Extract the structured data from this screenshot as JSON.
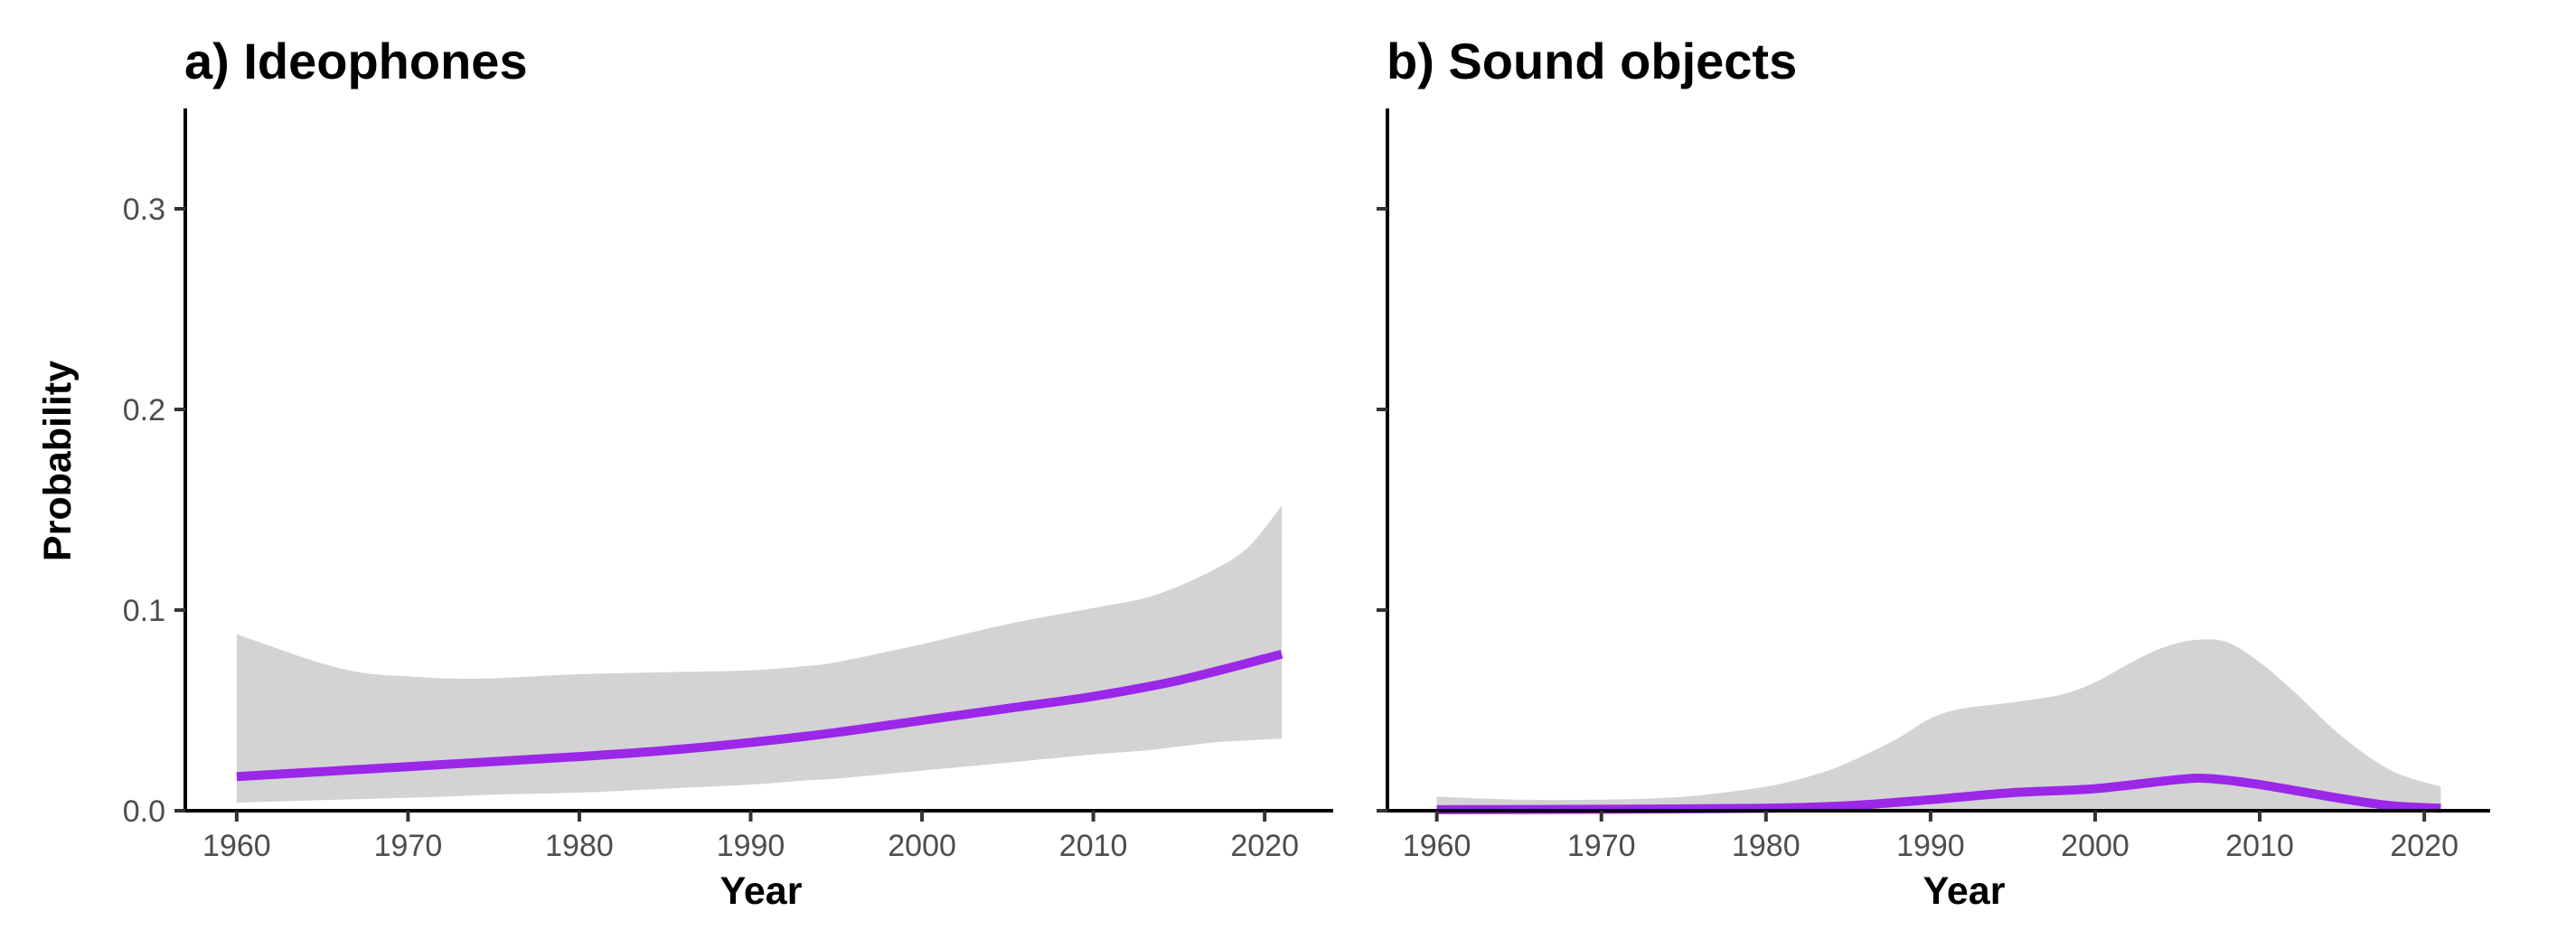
{
  "chart_data": [
    {
      "type": "line",
      "title": "a) Ideophones",
      "xlabel": "Year",
      "ylabel": "Probability",
      "xlim": [
        1957,
        2024
      ],
      "ylim": [
        0,
        0.35
      ],
      "x_ticks": [
        1960,
        1970,
        1980,
        1990,
        2000,
        2010,
        2020
      ],
      "x_tick_labels": [
        "1960",
        "1970",
        "1980",
        "1990",
        "2000",
        "2010",
        "2020"
      ],
      "y_ticks": [
        0.0,
        0.1,
        0.2,
        0.3
      ],
      "y_tick_labels": [
        "0.0",
        "0.1",
        "0.2",
        "0.3"
      ],
      "grid": false,
      "legend": "none",
      "series": [
        {
          "color": "#9b27e8",
          "x": [
            1960,
            1965,
            1970,
            1975,
            1980,
            1985,
            1990,
            1995,
            2000,
            2005,
            2010,
            2015,
            2021
          ],
          "y": [
            0.017,
            0.0195,
            0.022,
            0.0245,
            0.027,
            0.03,
            0.034,
            0.039,
            0.045,
            0.051,
            0.057,
            0.065,
            0.078
          ]
        }
      ],
      "band": {
        "color": "#d3d3d3",
        "x": [
          1960,
          1962,
          1964,
          1966,
          1968,
          1970,
          1972,
          1975,
          1980,
          1985,
          1990,
          1993,
          1995,
          2000,
          2005,
          2010,
          2013,
          2015,
          2017,
          2019,
          2021
        ],
        "upper": [
          0.088,
          0.082,
          0.076,
          0.071,
          0.068,
          0.067,
          0.066,
          0.066,
          0.068,
          0.069,
          0.07,
          0.072,
          0.074,
          0.083,
          0.093,
          0.101,
          0.106,
          0.112,
          0.12,
          0.131,
          0.152
        ],
        "lower": [
          0.004,
          0.0045,
          0.005,
          0.0055,
          0.006,
          0.0065,
          0.007,
          0.008,
          0.009,
          0.011,
          0.013,
          0.015,
          0.016,
          0.02,
          0.024,
          0.028,
          0.03,
          0.032,
          0.034,
          0.035,
          0.036
        ]
      }
    },
    {
      "type": "line",
      "title": "b) Sound objects",
      "xlabel": "Year",
      "ylabel": "",
      "xlim": [
        1957,
        2024
      ],
      "ylim": [
        0,
        0.35
      ],
      "x_ticks": [
        1960,
        1970,
        1980,
        1990,
        2000,
        2010,
        2020
      ],
      "x_tick_labels": [
        "1960",
        "1970",
        "1980",
        "1990",
        "2000",
        "2010",
        "2020"
      ],
      "y_ticks": [
        0.0,
        0.1,
        0.2,
        0.3
      ],
      "y_tick_labels": [],
      "grid": false,
      "legend": "none",
      "series": [
        {
          "color": "#9b27e8",
          "x": [
            1960,
            1970,
            1980,
            1985,
            1990,
            1995,
            2000,
            2005,
            2007,
            2010,
            2015,
            2018,
            2021
          ],
          "y": [
            0.0005,
            0.0007,
            0.0012,
            0.0025,
            0.0055,
            0.009,
            0.011,
            0.0155,
            0.016,
            0.013,
            0.006,
            0.0025,
            0.0012
          ]
        }
      ],
      "band": {
        "color": "#d3d3d3",
        "x": [
          1960,
          1965,
          1970,
          1975,
          1980,
          1983,
          1985,
          1988,
          1990,
          1992,
          1995,
          1998,
          2000,
          2002,
          2004,
          2006,
          2008,
          2010,
          2012,
          2015,
          2018,
          2021
        ],
        "upper": [
          0.007,
          0.0055,
          0.0055,
          0.007,
          0.012,
          0.018,
          0.024,
          0.036,
          0.046,
          0.051,
          0.054,
          0.058,
          0.064,
          0.073,
          0.081,
          0.085,
          0.084,
          0.074,
          0.06,
          0.037,
          0.02,
          0.012
        ],
        "lower": [
          0,
          0,
          0,
          0,
          0,
          0,
          0,
          0,
          0,
          0,
          0,
          0,
          0,
          0,
          0,
          0,
          0,
          0,
          0,
          0,
          0,
          0
        ]
      }
    }
  ]
}
